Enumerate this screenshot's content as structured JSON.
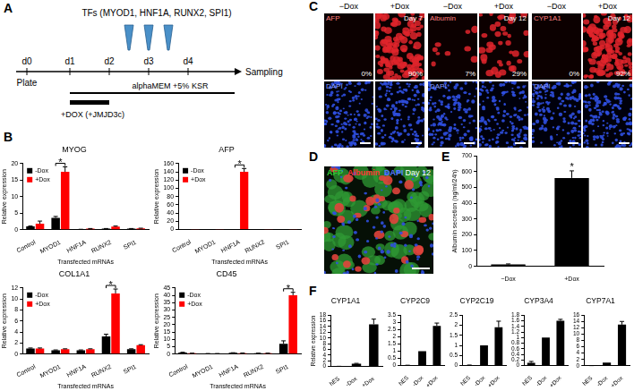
{
  "panel_labels": [
    "A",
    "B",
    "C",
    "D",
    "E",
    "F"
  ],
  "timeline": {
    "days": [
      "d0",
      "d1",
      "d2",
      "d3",
      "d4"
    ],
    "start": "Plate",
    "end": "Sampling",
    "factors": "TFs (MYOD1, HNF1A, RUNX2, SPI1)",
    "medium": "alphaMEM +5% KSR",
    "treatment": "+DOX (+JMJD3c)"
  },
  "images": [
    {
      "stain": "AFP",
      "day": "Day 7",
      "counterstain": "DAPI",
      "conditions": [
        {
          "label": "−Dox",
          "percent": "0%"
        },
        {
          "label": "+Dox",
          "percent": "90%"
        }
      ]
    },
    {
      "stain": "Albumin",
      "day": "Day 12",
      "counterstain": "DAPI",
      "conditions": [
        {
          "label": "−Dox",
          "percent": "7%"
        },
        {
          "label": "+Dox",
          "percent": "29%"
        }
      ]
    },
    {
      "stain": "CYP1A1",
      "day": "Day 12",
      "counterstain": "DAPI",
      "conditions": [
        {
          "label": "−Dox",
          "percent": "0%"
        },
        {
          "label": "+Dox",
          "percent": "92%"
        }
      ]
    }
  ],
  "merge_image": {
    "day": "Day 12",
    "stains": [
      {
        "label": "AFP",
        "color": "#33cc33"
      },
      {
        "label": "Albumin",
        "color": "#ff3333"
      },
      {
        "label": "DAPI",
        "color": "#5577ff"
      }
    ]
  },
  "chart_data": [
    {
      "type": "bar",
      "title": "MYOG",
      "categories": [
        "Control",
        "MYOD1",
        "HNF1A",
        "RUNX2",
        "SPI1"
      ],
      "x_label": "Transfected mRNAs",
      "y_label": "Relative expression",
      "ylim": [
        0,
        20
      ],
      "yticks": [
        0,
        5,
        10,
        15,
        20
      ],
      "legend": "top-left",
      "series": [
        {
          "name": "-Dox",
          "color": "#000000",
          "values": [
            1.0,
            3.6,
            0.1,
            0.3,
            0.3
          ],
          "errors": [
            0.1,
            0.4,
            0.02,
            0.05,
            0.05
          ]
        },
        {
          "name": "+Dox",
          "color": "#ff0000",
          "values": [
            1.8,
            17.5,
            0.3,
            0.9,
            0.4
          ],
          "errors": [
            0.8,
            1.5,
            0.05,
            0.2,
            0.05
          ]
        }
      ],
      "annotations": [
        {
          "category": "MYOD1",
          "text": "*"
        }
      ]
    },
    {
      "type": "bar",
      "title": "AFP",
      "categories": [
        "Control",
        "MYOD1",
        "HNF1A",
        "RUNX2",
        "SPI1"
      ],
      "x_label": "Transfected mRNAs",
      "y_label": "Relative expression",
      "ylim": [
        0,
        160
      ],
      "yticks": [
        0,
        20,
        40,
        60,
        80,
        100,
        120,
        140,
        160
      ],
      "legend": "top-left",
      "series": [
        {
          "name": "-Dox",
          "color": "#000000",
          "values": [
            0.5,
            0.3,
            0.5,
            0.2,
            0.2
          ],
          "errors": [
            0,
            0,
            0,
            0,
            0
          ]
        },
        {
          "name": "+Dox",
          "color": "#ff0000",
          "values": [
            0.5,
            0.3,
            140,
            0.2,
            0.3
          ],
          "errors": [
            0,
            0,
            8,
            0,
            0
          ]
        }
      ],
      "annotations": [
        {
          "category": "HNF1A",
          "text": "*"
        }
      ]
    },
    {
      "type": "bar",
      "title": "COL1A1",
      "categories": [
        "Control",
        "MYOD1",
        "HNF1A",
        "RUNX2",
        "SPI1"
      ],
      "x_label": "Transfected mRNAs",
      "y_label": "Relative expression",
      "ylim": [
        0,
        12
      ],
      "yticks": [
        0,
        2,
        4,
        6,
        8,
        10,
        12
      ],
      "legend": "top-left",
      "series": [
        {
          "name": "-Dox",
          "color": "#000000",
          "values": [
            1.0,
            0.7,
            0.7,
            3.2,
            0.9
          ],
          "errors": [
            0.1,
            0.05,
            0.05,
            0.4,
            0.05
          ]
        },
        {
          "name": "+Dox",
          "color": "#ff0000",
          "values": [
            1.0,
            0.9,
            0.9,
            11.0,
            1.6
          ],
          "errors": [
            0.1,
            0.05,
            0.05,
            0.8,
            0.1
          ]
        }
      ],
      "annotations": [
        {
          "category": "RUNX2",
          "text": "*"
        }
      ]
    },
    {
      "type": "bar",
      "title": "CD45",
      "categories": [
        "Control",
        "MYOD1",
        "HNF1A",
        "RUNX2",
        "SPI1"
      ],
      "x_label": "Transfected mRNAs",
      "y_label": "Relative expression",
      "ylim": [
        0,
        45
      ],
      "yticks": [
        0,
        5,
        10,
        15,
        20,
        25,
        30,
        35,
        40,
        45
      ],
      "legend": "top-left",
      "series": [
        {
          "name": "-Dox",
          "color": "#000000",
          "values": [
            1.0,
            0.3,
            0.8,
            0.5,
            7.0
          ],
          "errors": [
            0.2,
            0.05,
            0.1,
            0.1,
            2.0
          ]
        },
        {
          "name": "+Dox",
          "color": "#ff0000",
          "values": [
            0.5,
            0.3,
            0.6,
            0.5,
            40
          ],
          "errors": [
            0.1,
            0.05,
            0.1,
            0.1,
            2.0
          ]
        }
      ],
      "annotations": [
        {
          "category": "SPI1",
          "text": "*"
        }
      ]
    },
    {
      "type": "bar",
      "categories": [
        "−Dox",
        "+Dox"
      ],
      "y_label": "Albumin secretion (ng/ml/24h)",
      "ylim": [
        0,
        700
      ],
      "yticks": [
        0,
        100,
        200,
        300,
        400,
        500,
        600,
        700
      ],
      "color": "#000000",
      "values": [
        12,
        560
      ],
      "errors": [
        3,
        45
      ],
      "annotations": [
        {
          "category": "+Dox",
          "text": "*"
        }
      ]
    },
    {
      "type": "bar",
      "title": "CYP1A1",
      "categories": [
        "hES",
        "-Dox",
        "+Dox"
      ],
      "y_label": "Relative expression",
      "ylim": [
        0,
        18
      ],
      "yticks": [
        0,
        2,
        4,
        6,
        8,
        10,
        12,
        14,
        16,
        18
      ],
      "color": "#000000",
      "values": [
        0.05,
        1,
        14.8
      ],
      "errors": [
        0.02,
        0.1,
        1.8
      ]
    },
    {
      "type": "bar",
      "title": "CYP2C9",
      "categories": [
        "hES",
        "-Dox",
        "+Dox"
      ],
      "ylim": [
        0,
        3.5
      ],
      "yticks": [
        0,
        0.5,
        1,
        1.5,
        2,
        2.5,
        3,
        3.5
      ],
      "color": "#000000",
      "values": [
        0.02,
        1,
        2.75
      ],
      "errors": [
        0.01,
        0,
        0.2
      ]
    },
    {
      "type": "bar",
      "title": "CYP2C19",
      "categories": [
        "hES",
        "-Dox",
        "+Dox"
      ],
      "ylim": [
        0,
        2.5
      ],
      "yticks": [
        0,
        0.5,
        1,
        1.5,
        2,
        2.5
      ],
      "color": "#000000",
      "values": [
        0.02,
        1,
        1.9
      ],
      "errors": [
        0.01,
        0,
        0.3
      ]
    },
    {
      "type": "bar",
      "title": "CYP3A4",
      "categories": [
        "hES",
        "-Dox",
        "+Dox"
      ],
      "ylim": [
        0,
        1.8
      ],
      "yticks": [
        0,
        0.2,
        0.4,
        0.6,
        0.8,
        1,
        1.2,
        1.4,
        1.6,
        1.8
      ],
      "color": "#000000",
      "values": [
        0.1,
        1,
        1.6
      ],
      "errors": [
        0.05,
        0,
        0.05
      ]
    },
    {
      "type": "bar",
      "title": "CYP7A1",
      "categories": [
        "hES",
        "-Dox",
        "+Dox"
      ],
      "ylim": [
        0,
        16
      ],
      "yticks": [
        0,
        2,
        4,
        6,
        8,
        10,
        12,
        14,
        16
      ],
      "color": "#000000",
      "values": [
        0.05,
        1,
        13
      ],
      "errors": [
        0.02,
        0,
        1
      ]
    }
  ]
}
